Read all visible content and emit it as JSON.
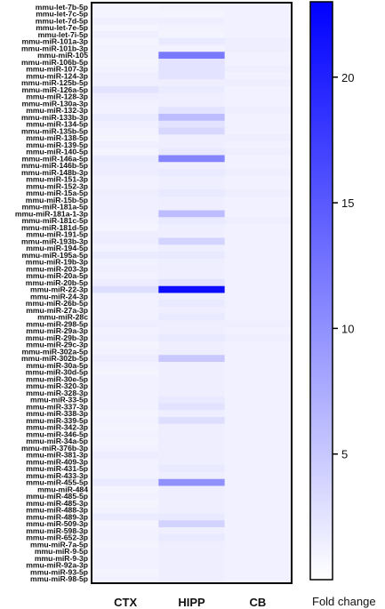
{
  "chart_data": {
    "type": "heatmap",
    "columns": [
      "CTX",
      "HIPP",
      "CB"
    ],
    "rows": [
      "mmu-let-7b-5p",
      "mmu-let-7c-5p",
      "mmu-let-7d-5p",
      "mmu-let-7e-5p",
      "mmu-let-7i-5p",
      "mmu-miR-101a-3p",
      "mmu-miR-101b-3p",
      "mmu-miR-105",
      "mmu-miR-106b-5p",
      "mmu-miR-107-3p",
      "mmu-miR-124-3p",
      "mmu-miR-125b-5p",
      "mmu-miR-126a-5p",
      "mmu-miR-128-3p",
      "mmu-miR-130a-3p",
      "mmu-miR-132-3p",
      "mmu-miR-133b-3p",
      "mmu-miR-134-5p",
      "mmu-miR-135b-5p",
      "mmu-miR-138-5p",
      "mmu-miR-139-5p",
      "mmu-miR-140-5p",
      "mmu-miR-146a-5p",
      "mmu-miR-146b-5p",
      "mmu-miR-148b-3p",
      "mmu-miR-151-3p",
      "mmu-miR-152-3p",
      "mmu-miR-15a-5p",
      "mmu-miR-15b-5p",
      "mmu-miR-181a-5p",
      "mmu-miR-181a-1-3p",
      "mmu-miR-181c-5p",
      "mmu-miR-181d-5p",
      "mmu-miR-191-5p",
      "mmu-miR-193b-3p",
      "mmu-miR-194-5p",
      "mmu-miR-195a-5p",
      "mmu-miR-19b-3p",
      "mmu-miR-203-3p",
      "mmu-miR-20a-5p",
      "mmu-miR-20b-5p",
      "mmu-miR-22-3p",
      "mmu-miR-24-3p",
      "mmu-miR-26b-5p",
      "mmu-miR-27a-3p",
      "mmu-miR-28c",
      "mmu-miR-298-5p",
      "mmu-miR-29a-3p",
      "mmu-miR-29b-3p",
      "mmu-miR-29c-3p",
      "mmu-miR-302a-5p",
      "mmu-miR-302b-5p",
      "mmu-miR-30a-5p",
      "mmu-miR-30d-5p",
      "mmu-miR-30e-5p",
      "mmu-miR-320-3p",
      "mmu-miR-328-3p",
      "mmu-miR-33-5p",
      "mmu-miR-337-3p",
      "mmu-miR-338-3p",
      "mmu-miR-339-5p",
      "mmu-miR-342-3p",
      "mmu-miR-346-5p",
      "mmu-miR-34a-5p",
      "mmu-miR-376b-3p",
      "mmu-miR-381-3p",
      "mmu-miR-409-3p",
      "mmu-miR-431-5p",
      "mmu-miR-433-3p",
      "mmu-miR-455-5p",
      "mmu-miR-484",
      "mmu-miR-485-5p",
      "mmu-miR-485-3p",
      "mmu-miR-488-3p",
      "mmu-miR-489-3p",
      "mmu-miR-509-3p",
      "mmu-miR-598-3p",
      "mmu-miR-652-3p",
      "mmu-miR-7a-5p",
      "mmu-miR-9-5p",
      "mmu-miR-9-3p",
      "mmu-miR-92a-3p",
      "mmu-miR-93-5p",
      "mmu-miR-98-5p"
    ],
    "values": [
      [
        1.0,
        1.2,
        1.3
      ],
      [
        1.0,
        1.0,
        1.3
      ],
      [
        1.4,
        1.5,
        1.3
      ],
      [
        1.0,
        1.2,
        1.3
      ],
      [
        1.4,
        1.0,
        1.3
      ],
      [
        1.0,
        2.0,
        1.5
      ],
      [
        1.2,
        1.2,
        1.5
      ],
      [
        1.2,
        12.0,
        1.3
      ],
      [
        1.0,
        2.5,
        1.3
      ],
      [
        1.3,
        2.5,
        1.5
      ],
      [
        1.5,
        2.5,
        1.3
      ],
      [
        1.4,
        1.5,
        1.5
      ],
      [
        2.5,
        1.8,
        1.3
      ],
      [
        1.6,
        1.5,
        1.3
      ],
      [
        1.3,
        1.5,
        1.3
      ],
      [
        1.3,
        2.5,
        1.5
      ],
      [
        1.8,
        6.0,
        1.3
      ],
      [
        1.4,
        2.5,
        1.3
      ],
      [
        1.3,
        3.5,
        1.3
      ],
      [
        1.0,
        1.5,
        1.5
      ],
      [
        1.4,
        1.5,
        1.3
      ],
      [
        1.0,
        2.0,
        1.5
      ],
      [
        1.8,
        11.0,
        1.3
      ],
      [
        1.6,
        1.5,
        1.3
      ],
      [
        1.6,
        2.0,
        1.5
      ],
      [
        1.3,
        1.5,
        1.3
      ],
      [
        1.3,
        1.5,
        1.3
      ],
      [
        1.5,
        2.0,
        1.5
      ],
      [
        1.4,
        1.5,
        1.3
      ],
      [
        1.4,
        1.5,
        1.3
      ],
      [
        1.4,
        6.0,
        1.3
      ],
      [
        1.3,
        2.0,
        1.5
      ],
      [
        1.0,
        1.5,
        1.3
      ],
      [
        1.5,
        1.5,
        1.3
      ],
      [
        1.6,
        4.0,
        1.3
      ],
      [
        1.3,
        1.5,
        1.3
      ],
      [
        1.8,
        2.0,
        1.3
      ],
      [
        1.3,
        1.5,
        1.3
      ],
      [
        1.4,
        1.5,
        1.3
      ],
      [
        1.3,
        1.5,
        1.3
      ],
      [
        1.6,
        2.5,
        1.3
      ],
      [
        3.0,
        22.0,
        1.3
      ],
      [
        1.3,
        1.5,
        1.3
      ],
      [
        1.3,
        2.0,
        1.3
      ],
      [
        1.3,
        1.5,
        1.3
      ],
      [
        1.3,
        2.0,
        1.3
      ],
      [
        1.6,
        1.5,
        1.5
      ],
      [
        1.3,
        1.5,
        1.3
      ],
      [
        1.4,
        2.0,
        1.5
      ],
      [
        1.0,
        1.5,
        1.3
      ],
      [
        1.3,
        1.5,
        1.3
      ],
      [
        1.6,
        5.0,
        1.3
      ],
      [
        1.3,
        1.5,
        1.3
      ],
      [
        1.0,
        1.5,
        1.3
      ],
      [
        1.3,
        1.5,
        1.3
      ],
      [
        1.3,
        1.5,
        1.3
      ],
      [
        1.3,
        1.5,
        1.3
      ],
      [
        1.3,
        2.0,
        1.3
      ],
      [
        1.3,
        2.5,
        1.3
      ],
      [
        1.0,
        1.5,
        1.3
      ],
      [
        1.3,
        3.0,
        1.3
      ],
      [
        1.0,
        1.5,
        1.3
      ],
      [
        1.3,
        1.5,
        1.3
      ],
      [
        1.0,
        1.5,
        1.3
      ],
      [
        1.3,
        1.5,
        1.3
      ],
      [
        1.6,
        1.5,
        1.3
      ],
      [
        1.3,
        1.5,
        1.3
      ],
      [
        1.3,
        2.0,
        1.3
      ],
      [
        1.3,
        1.5,
        1.3
      ],
      [
        2.0,
        10.0,
        1.3
      ],
      [
        1.0,
        1.5,
        1.3
      ],
      [
        1.3,
        1.5,
        1.3
      ],
      [
        1.0,
        1.5,
        1.3
      ],
      [
        1.3,
        1.5,
        1.3
      ],
      [
        1.8,
        2.0,
        1.3
      ],
      [
        1.0,
        4.0,
        1.3
      ],
      [
        1.3,
        1.5,
        1.3
      ],
      [
        1.3,
        2.0,
        1.3
      ],
      [
        1.0,
        1.5,
        1.3
      ],
      [
        1.3,
        1.5,
        1.3
      ],
      [
        1.3,
        1.5,
        1.3
      ],
      [
        1.3,
        1.5,
        1.3
      ],
      [
        1.0,
        1.5,
        1.3
      ],
      [
        1.3,
        1.5,
        1.3
      ]
    ],
    "colorbar": {
      "title": "Fold change",
      "ticks": [
        5,
        10,
        15,
        20
      ],
      "range": [
        0,
        23
      ],
      "low_color": "#ffffff",
      "high_color": "#0000ff"
    }
  }
}
